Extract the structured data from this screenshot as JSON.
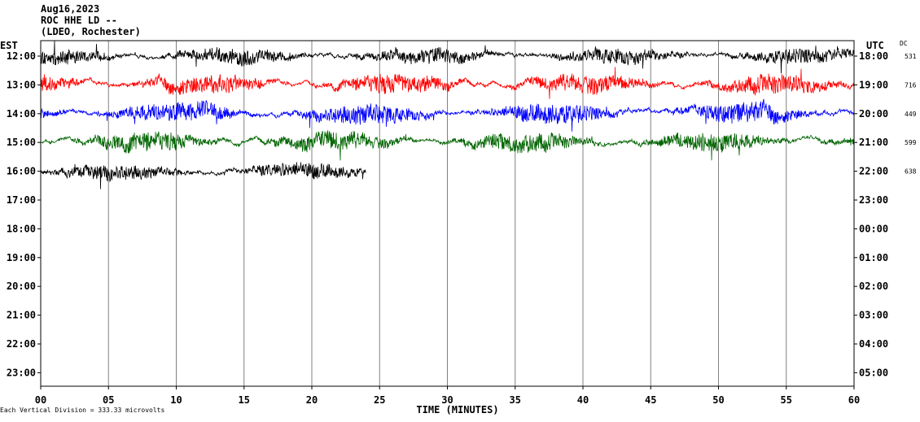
{
  "header": {
    "date": "Aug16,2023",
    "station": "ROC HHE LD --",
    "location": "(LDEO, Rochester)"
  },
  "chart_data": {
    "type": "line",
    "title": "",
    "left_axis_title": "EST",
    "right_axis_title": "UTC",
    "dc_title": "DC",
    "xlabel": "TIME (MINUTES)",
    "x_ticks": [
      "00",
      "05",
      "10",
      "15",
      "20",
      "25",
      "30",
      "35",
      "40",
      "45",
      "50",
      "55",
      "60"
    ],
    "xlim": [
      0,
      60
    ],
    "left_ticks": [
      "12:00",
      "13:00",
      "14:00",
      "15:00",
      "16:00",
      "17:00",
      "18:00",
      "19:00",
      "20:00",
      "21:00",
      "22:00",
      "23:00"
    ],
    "right_ticks": [
      "18:00",
      "19:00",
      "20:00",
      "21:00",
      "22:00",
      "23:00",
      "00:00",
      "01:00",
      "02:00",
      "03:00",
      "04:00",
      "05:00"
    ],
    "dc_offsets": [
      "531",
      "716",
      "449",
      "599",
      "638"
    ],
    "grid": "vertical every 5 minutes",
    "scale_note": "Each Vertical Division =  333.33 microvolts",
    "traces": [
      {
        "hour": "12:00",
        "color": "#000000",
        "minutes_recorded": 60,
        "amplitude": 9
      },
      {
        "hour": "13:00",
        "color": "#ff0000",
        "minutes_recorded": 60,
        "amplitude": 11
      },
      {
        "hour": "14:00",
        "color": "#0000ff",
        "minutes_recorded": 60,
        "amplitude": 12
      },
      {
        "hour": "15:00",
        "color": "#006400",
        "minutes_recorded": 60,
        "amplitude": 11
      },
      {
        "hour": "16:00",
        "color": "#000000",
        "minutes_recorded": 24,
        "amplitude": 9
      }
    ]
  }
}
